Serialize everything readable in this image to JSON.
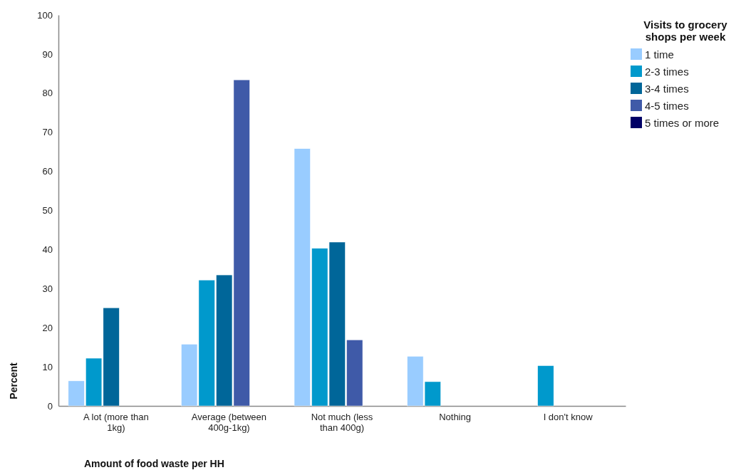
{
  "chart_data": {
    "type": "bar",
    "xlabel": "Amount of food waste per HH",
    "ylabel": "Percent",
    "legend_title": "Visits to grocery shops per week",
    "categories": [
      "A lot (more than 1kg)",
      "Average (between 400g-1kg)",
      "Not much (less than 400g)",
      "Nothing",
      "I don't know"
    ],
    "series": [
      {
        "name": "1 time",
        "color": "#99ccff",
        "values": [
          6.4,
          15.8,
          65.8,
          12.7,
          null
        ]
      },
      {
        "name": "2-3 times",
        "color": "#0099cc",
        "values": [
          12.2,
          32.2,
          40.3,
          6.2,
          10.3
        ]
      },
      {
        "name": "3-4 times",
        "color": "#006699",
        "values": [
          25.1,
          33.5,
          41.9,
          null,
          null
        ]
      },
      {
        "name": "4-5 times",
        "color": "#3f5aa8",
        "values": [
          null,
          83.4,
          16.9,
          null,
          null
        ]
      },
      {
        "name": "5 times or more",
        "color": "#000066",
        "values": [
          null,
          null,
          null,
          null,
          null
        ]
      }
    ],
    "ylim": [
      0,
      100
    ],
    "yticks": [
      0,
      10,
      20,
      30,
      40,
      50,
      60,
      70,
      80,
      90,
      100
    ],
    "grid": false,
    "legend": "top right"
  }
}
